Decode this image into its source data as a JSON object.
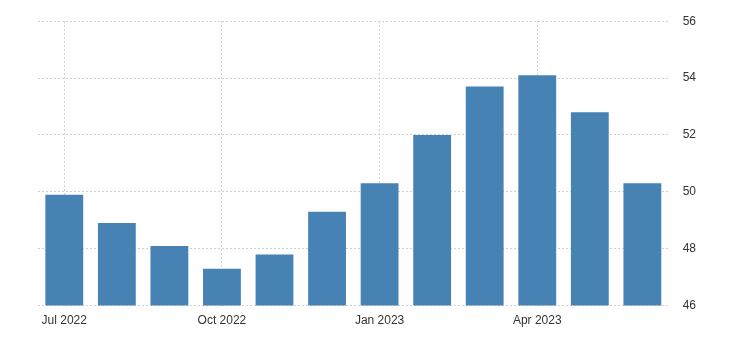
{
  "chart_data": {
    "type": "bar",
    "categories": [
      "Jul 2022",
      null,
      null,
      "Oct 2022",
      null,
      null,
      "Jan 2023",
      null,
      null,
      "Apr 2023",
      null,
      null
    ],
    "values": [
      49.9,
      48.9,
      48.1,
      47.3,
      47.8,
      49.3,
      50.3,
      52.0,
      53.7,
      54.1,
      52.8,
      50.3
    ],
    "color": "#4682b4",
    "ylim": [
      46,
      56
    ],
    "yticks": [
      46,
      48,
      50,
      52,
      54,
      56
    ],
    "grid": true
  }
}
